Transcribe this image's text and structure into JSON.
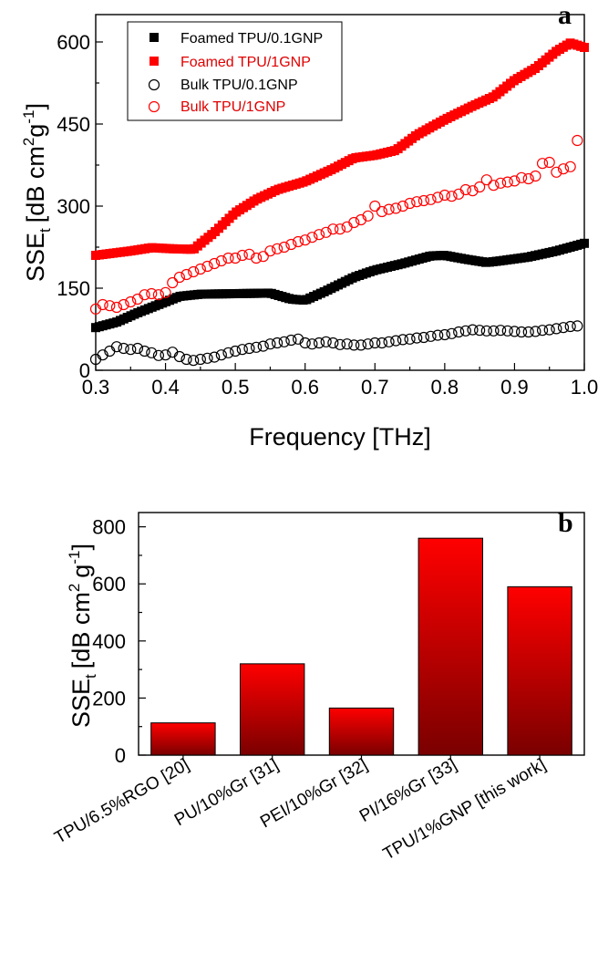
{
  "chart_data": [
    {
      "type": "scatter",
      "panel": "a",
      "xlabel": "Frequency [THz]",
      "ylabel_main": "SSE",
      "ylabel_sub": "t",
      "ylabel_rest": "[dB cm",
      "ylabel_sup1": "2",
      "ylabel_g": "g",
      "ylabel_sup2": "-1",
      "ylabel_close": "]",
      "xlim": [
        0.3,
        1.0
      ],
      "ylim": [
        0,
        650
      ],
      "xticks": [
        "0.3",
        "0.4",
        "0.5",
        "0.6",
        "0.7",
        "0.8",
        "0.9",
        "1.0"
      ],
      "xtick_values": [
        0.3,
        0.4,
        0.5,
        0.6,
        0.7,
        0.8,
        0.9,
        1.0
      ],
      "yticks": [
        "0",
        "150",
        "300",
        "450",
        "600"
      ],
      "ytick_values": [
        0,
        150,
        300,
        450,
        600
      ],
      "legend_position": "top-left",
      "series": [
        {
          "name": "Foamed TPU/0.1GNP",
          "marker": "filled-square",
          "color": "#000000",
          "x_range": [
            0.3,
            1.0
          ],
          "n_points": 140,
          "curve": [
            [
              0.3,
              78
            ],
            [
              0.33,
              88
            ],
            [
              0.36,
              105
            ],
            [
              0.39,
              120
            ],
            [
              0.42,
              135
            ],
            [
              0.45,
              139
            ],
            [
              0.5,
              140
            ],
            [
              0.55,
              141
            ],
            [
              0.58,
              130
            ],
            [
              0.6,
              128
            ],
            [
              0.63,
              145
            ],
            [
              0.67,
              170
            ],
            [
              0.7,
              183
            ],
            [
              0.74,
              195
            ],
            [
              0.78,
              209
            ],
            [
              0.8,
              210
            ],
            [
              0.83,
              203
            ],
            [
              0.86,
              197
            ],
            [
              0.88,
              200
            ],
            [
              0.92,
              207
            ],
            [
              0.96,
              218
            ],
            [
              1.0,
              232
            ]
          ]
        },
        {
          "name": "Foamed TPU/1GNP",
          "marker": "filled-square",
          "color": "#ff0000",
          "x_range": [
            0.3,
            1.0
          ],
          "n_points": 140,
          "curve": [
            [
              0.3,
              210
            ],
            [
              0.35,
              218
            ],
            [
              0.38,
              224
            ],
            [
              0.41,
              222
            ],
            [
              0.44,
              221
            ],
            [
              0.47,
              252
            ],
            [
              0.5,
              288
            ],
            [
              0.53,
              312
            ],
            [
              0.56,
              330
            ],
            [
              0.6,
              345
            ],
            [
              0.64,
              368
            ],
            [
              0.67,
              388
            ],
            [
              0.7,
              393
            ],
            [
              0.73,
              402
            ],
            [
              0.76,
              430
            ],
            [
              0.8,
              458
            ],
            [
              0.84,
              483
            ],
            [
              0.87,
              500
            ],
            [
              0.9,
              530
            ],
            [
              0.93,
              552
            ],
            [
              0.96,
              583
            ],
            [
              0.98,
              598
            ],
            [
              1.0,
              590
            ]
          ]
        },
        {
          "name": "Bulk TPU/0.1GNP",
          "marker": "open-circle",
          "color": "#000000",
          "points": [
            [
              0.3,
              20
            ],
            [
              0.31,
              28
            ],
            [
              0.32,
              35
            ],
            [
              0.33,
              43
            ],
            [
              0.34,
              40
            ],
            [
              0.35,
              38
            ],
            [
              0.36,
              40
            ],
            [
              0.37,
              35
            ],
            [
              0.38,
              32
            ],
            [
              0.39,
              27
            ],
            [
              0.4,
              28
            ],
            [
              0.41,
              33
            ],
            [
              0.42,
              25
            ],
            [
              0.43,
              20
            ],
            [
              0.44,
              18
            ],
            [
              0.45,
              20
            ],
            [
              0.46,
              22
            ],
            [
              0.47,
              24
            ],
            [
              0.48,
              28
            ],
            [
              0.49,
              32
            ],
            [
              0.5,
              35
            ],
            [
              0.51,
              38
            ],
            [
              0.52,
              40
            ],
            [
              0.53,
              42
            ],
            [
              0.54,
              44
            ],
            [
              0.55,
              48
            ],
            [
              0.56,
              50
            ],
            [
              0.57,
              52
            ],
            [
              0.58,
              55
            ],
            [
              0.59,
              57
            ],
            [
              0.6,
              50
            ],
            [
              0.61,
              48
            ],
            [
              0.62,
              50
            ],
            [
              0.63,
              52
            ],
            [
              0.64,
              50
            ],
            [
              0.65,
              47
            ],
            [
              0.66,
              48
            ],
            [
              0.67,
              46
            ],
            [
              0.68,
              46
            ],
            [
              0.69,
              48
            ],
            [
              0.7,
              50
            ],
            [
              0.71,
              50
            ],
            [
              0.72,
              52
            ],
            [
              0.73,
              54
            ],
            [
              0.74,
              56
            ],
            [
              0.75,
              57
            ],
            [
              0.76,
              59
            ],
            [
              0.77,
              60
            ],
            [
              0.78,
              62
            ],
            [
              0.79,
              64
            ],
            [
              0.8,
              65
            ],
            [
              0.81,
              67
            ],
            [
              0.82,
              70
            ],
            [
              0.83,
              72
            ],
            [
              0.84,
              74
            ],
            [
              0.85,
              73
            ],
            [
              0.86,
              72
            ],
            [
              0.87,
              72
            ],
            [
              0.88,
              73
            ],
            [
              0.89,
              72
            ],
            [
              0.9,
              71
            ],
            [
              0.91,
              70
            ],
            [
              0.92,
              70
            ],
            [
              0.93,
              71
            ],
            [
              0.94,
              73
            ],
            [
              0.95,
              74
            ],
            [
              0.96,
              76
            ],
            [
              0.97,
              78
            ],
            [
              0.98,
              80
            ],
            [
              0.99,
              81
            ]
          ]
        },
        {
          "name": "Bulk TPU/1GNP",
          "marker": "open-circle",
          "color": "#ff0000",
          "points": [
            [
              0.3,
              112
            ],
            [
              0.31,
              120
            ],
            [
              0.32,
              118
            ],
            [
              0.33,
              115
            ],
            [
              0.34,
              120
            ],
            [
              0.35,
              125
            ],
            [
              0.36,
              130
            ],
            [
              0.37,
              138
            ],
            [
              0.38,
              140
            ],
            [
              0.39,
              138
            ],
            [
              0.4,
              142
            ],
            [
              0.41,
              160
            ],
            [
              0.42,
              170
            ],
            [
              0.43,
              175
            ],
            [
              0.44,
              180
            ],
            [
              0.45,
              185
            ],
            [
              0.46,
              190
            ],
            [
              0.47,
              195
            ],
            [
              0.48,
              200
            ],
            [
              0.49,
              205
            ],
            [
              0.5,
              205
            ],
            [
              0.51,
              210
            ],
            [
              0.52,
              212
            ],
            [
              0.53,
              205
            ],
            [
              0.54,
              208
            ],
            [
              0.55,
              218
            ],
            [
              0.56,
              222
            ],
            [
              0.57,
              225
            ],
            [
              0.58,
              230
            ],
            [
              0.59,
              235
            ],
            [
              0.6,
              238
            ],
            [
              0.61,
              243
            ],
            [
              0.62,
              248
            ],
            [
              0.63,
              252
            ],
            [
              0.64,
              258
            ],
            [
              0.65,
              258
            ],
            [
              0.66,
              262
            ],
            [
              0.67,
              270
            ],
            [
              0.68,
              275
            ],
            [
              0.69,
              282
            ],
            [
              0.7,
              300
            ],
            [
              0.71,
              290
            ],
            [
              0.72,
              294
            ],
            [
              0.73,
              296
            ],
            [
              0.74,
              300
            ],
            [
              0.75,
              305
            ],
            [
              0.76,
              308
            ],
            [
              0.77,
              310
            ],
            [
              0.78,
              312
            ],
            [
              0.79,
              316
            ],
            [
              0.8,
              320
            ],
            [
              0.81,
              318
            ],
            [
              0.82,
              322
            ],
            [
              0.83,
              330
            ],
            [
              0.84,
              328
            ],
            [
              0.85,
              335
            ],
            [
              0.86,
              348
            ],
            [
              0.87,
              338
            ],
            [
              0.88,
              342
            ],
            [
              0.89,
              344
            ],
            [
              0.9,
              346
            ],
            [
              0.91,
              352
            ],
            [
              0.92,
              350
            ],
            [
              0.93,
              355
            ],
            [
              0.94,
              378
            ],
            [
              0.95,
              380
            ],
            [
              0.96,
              362
            ],
            [
              0.97,
              368
            ],
            [
              0.98,
              372
            ],
            [
              0.99,
              420
            ]
          ]
        }
      ]
    },
    {
      "type": "bar",
      "panel": "b",
      "ylabel_main": "SSE",
      "ylabel_sub": "t",
      "ylabel_rest": "[dB cm",
      "ylabel_sup1": "2",
      "ylabel_g": "g",
      "ylabel_sup2": "-1",
      "ylabel_close": "]",
      "ylim": [
        0,
        850
      ],
      "yticks": [
        "0",
        "200",
        "400",
        "600",
        "800"
      ],
      "ytick_values": [
        0,
        200,
        400,
        600,
        800
      ],
      "categories": [
        "TPU/6.5%RGO [20]",
        "PU/10%Gr [31]",
        "PEI/10%Gr [32]",
        "PI/16%Gr [33]",
        "TPU/1%GNP [this work]"
      ],
      "values": [
        113,
        320,
        165,
        760,
        590
      ],
      "colors": {
        "top": "#ff0000",
        "bottom": "#7a0000"
      }
    }
  ]
}
